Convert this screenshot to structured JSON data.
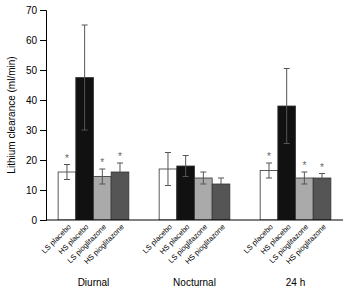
{
  "chart_data": {
    "type": "bar",
    "categories": [
      "Diurnal",
      "Nocturnal",
      "24 h"
    ],
    "series": [
      {
        "name": "LS placebo",
        "color": "#ffffff",
        "values": [
          16.0,
          17.0,
          16.5
        ],
        "errors": [
          2.5,
          5.5,
          2.5
        ],
        "annotations": [
          "*",
          null,
          "*"
        ]
      },
      {
        "name": "HS placebo",
        "color": "#111111",
        "values": [
          47.5,
          18.0,
          38.0
        ],
        "errors": [
          17.5,
          3.5,
          12.5
        ],
        "annotations": [
          null,
          null,
          null
        ]
      },
      {
        "name": "LS pioglitazone",
        "color": "#aaaaaa",
        "values": [
          14.5,
          14.0,
          14.0
        ],
        "errors": [
          2.5,
          2.0,
          2.0
        ],
        "annotations": [
          "*",
          null,
          "*"
        ]
      },
      {
        "name": "HS pioglitazone",
        "color": "#555555",
        "values": [
          16.0,
          12.0,
          14.0
        ],
        "errors": [
          3.0,
          2.0,
          1.5
        ],
        "annotations": [
          "*",
          null,
          "*"
        ]
      }
    ],
    "y_label": "Lithium clearance (ml/min)",
    "ylim": [
      0,
      70
    ],
    "yticks": [
      0,
      10,
      20,
      30,
      40,
      50,
      60,
      70
    ],
    "grid": false
  }
}
